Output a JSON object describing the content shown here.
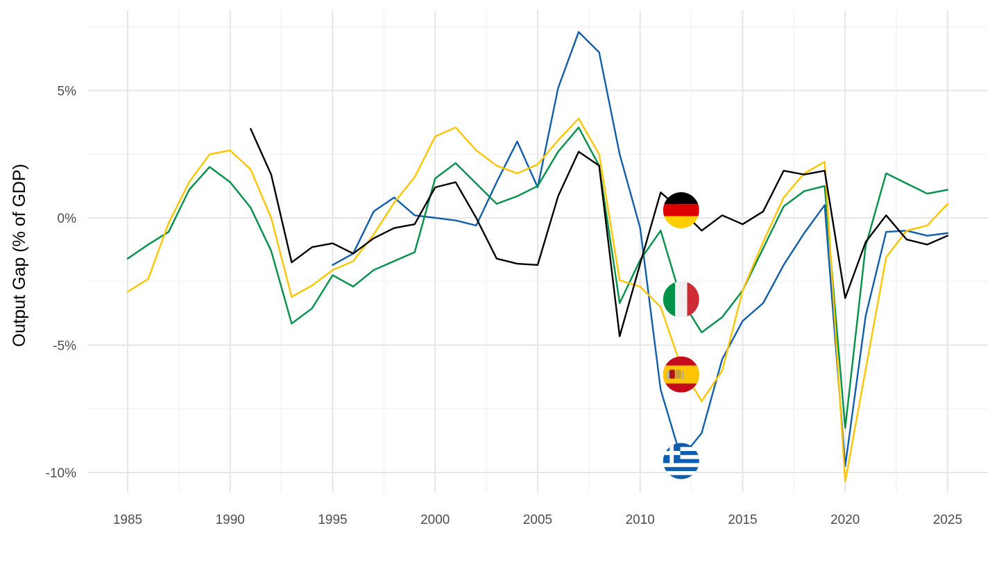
{
  "colors": {
    "germany": "#000000",
    "italy": "#009246",
    "spain": "#FFC400",
    "greece": "#0D5EAF",
    "grid": "#E6E6E6"
  },
  "chart_data": {
    "type": "line",
    "title": "",
    "xlabel": "",
    "ylabel": "Output Gap (% of GDP)",
    "xlim": [
      1985,
      2025
    ],
    "ylim": [
      -10,
      5
    ],
    "x_ticks": [
      "1985",
      "1990",
      "1995",
      "2000",
      "2005",
      "2010",
      "2015",
      "2020",
      "2025"
    ],
    "y_ticks": [
      {
        "value": 5,
        "label": "5%"
      },
      {
        "value": 0,
        "label": "0%"
      },
      {
        "value": -5,
        "label": "-5%"
      },
      {
        "value": -10,
        "label": "-10%"
      }
    ],
    "grid": true,
    "legend": "flag markers at 2012",
    "series": [
      {
        "key": "germany",
        "flag": "germany-flag",
        "x": [
          1991,
          1992,
          1993,
          1994,
          1995,
          1996,
          1997,
          1998,
          1999,
          2000,
          2001,
          2002,
          2003,
          2004,
          2005,
          2006,
          2007,
          2008,
          2009,
          2010,
          2011,
          2012,
          2013,
          2014,
          2015,
          2016,
          2017,
          2018,
          2019,
          2020,
          2021,
          2022,
          2023,
          2024,
          2025
        ],
        "y": [
          3.5,
          1.7,
          -1.75,
          -1.15,
          -1.0,
          -1.4,
          -0.8,
          -0.4,
          -0.25,
          1.2,
          1.4,
          0.0,
          -1.6,
          -1.8,
          -1.85,
          0.85,
          2.6,
          2.05,
          -4.65,
          -1.8,
          1.0,
          0.3,
          -0.5,
          0.1,
          -0.25,
          0.25,
          1.85,
          1.7,
          1.85,
          -3.15,
          -0.95,
          0.1,
          -0.85,
          -1.05,
          -0.7
        ]
      },
      {
        "key": "italy",
        "flag": "italy-flag",
        "x": [
          1985,
          1986,
          1987,
          1988,
          1989,
          1990,
          1991,
          1992,
          1993,
          1994,
          1995,
          1996,
          1997,
          1998,
          1999,
          2000,
          2001,
          2002,
          2003,
          2004,
          2005,
          2006,
          2007,
          2008,
          2009,
          2010,
          2011,
          2012,
          2013,
          2014,
          2015,
          2016,
          2017,
          2018,
          2019,
          2020,
          2021,
          2022,
          2023,
          2024,
          2025
        ],
        "y": [
          -1.6,
          -1.05,
          -0.55,
          1.1,
          2.0,
          1.4,
          0.4,
          -1.3,
          -4.15,
          -3.55,
          -2.25,
          -2.7,
          -2.05,
          -1.7,
          -1.35,
          1.55,
          2.15,
          1.35,
          0.55,
          0.85,
          1.25,
          2.6,
          3.55,
          2.05,
          -3.35,
          -1.65,
          -0.5,
          -3.2,
          -4.5,
          -3.9,
          -2.85,
          -1.2,
          0.45,
          1.05,
          1.25,
          -8.25,
          -1.1,
          1.75,
          1.35,
          0.95,
          1.1
        ]
      },
      {
        "key": "spain",
        "flag": "spain-flag",
        "x": [
          1985,
          1986,
          1987,
          1988,
          1989,
          1990,
          1991,
          1992,
          1993,
          1994,
          1995,
          1996,
          1997,
          1998,
          1999,
          2000,
          2001,
          2002,
          2003,
          2004,
          2005,
          2006,
          2007,
          2008,
          2009,
          2010,
          2011,
          2012,
          2013,
          2014,
          2015,
          2016,
          2017,
          2018,
          2019,
          2020,
          2021,
          2022,
          2023,
          2024,
          2025
        ],
        "y": [
          -2.9,
          -2.4,
          -0.2,
          1.4,
          2.5,
          2.65,
          1.9,
          0.0,
          -3.1,
          -2.65,
          -2.05,
          -1.7,
          -0.65,
          0.6,
          1.6,
          3.2,
          3.55,
          2.65,
          2.05,
          1.75,
          2.1,
          3.05,
          3.9,
          2.5,
          -2.45,
          -2.7,
          -3.5,
          -5.85,
          -7.2,
          -6.0,
          -2.85,
          -0.95,
          0.8,
          1.75,
          2.2,
          -10.35,
          -5.95,
          -1.55,
          -0.5,
          -0.3,
          0.55
        ]
      },
      {
        "key": "greece",
        "flag": "greece-flag",
        "x": [
          1995,
          1996,
          1997,
          1998,
          1999,
          2000,
          2001,
          2002,
          2003,
          2004,
          2005,
          2006,
          2007,
          2008,
          2009,
          2010,
          2011,
          2012,
          2013,
          2014,
          2015,
          2016,
          2017,
          2018,
          2019,
          2020,
          2021,
          2022,
          2023,
          2024,
          2025
        ],
        "y": [
          -1.85,
          -1.4,
          0.25,
          0.8,
          0.1,
          0.0,
          -0.1,
          -0.3,
          1.4,
          3.0,
          1.2,
          5.1,
          7.3,
          6.5,
          2.5,
          -0.4,
          -6.75,
          -9.45,
          -8.45,
          -5.55,
          -4.05,
          -3.35,
          -1.85,
          -0.6,
          0.5,
          -9.75,
          -3.85,
          -0.55,
          -0.5,
          -0.7,
          -0.6
        ]
      }
    ],
    "flags": [
      {
        "name": "germany-flag",
        "x": 2012,
        "y": 0.3
      },
      {
        "name": "italy-flag",
        "x": 2012,
        "y": -3.2
      },
      {
        "name": "spain-flag",
        "x": 2012,
        "y": -6.15
      },
      {
        "name": "greece-flag",
        "x": 2012,
        "y": -9.55
      }
    ]
  }
}
